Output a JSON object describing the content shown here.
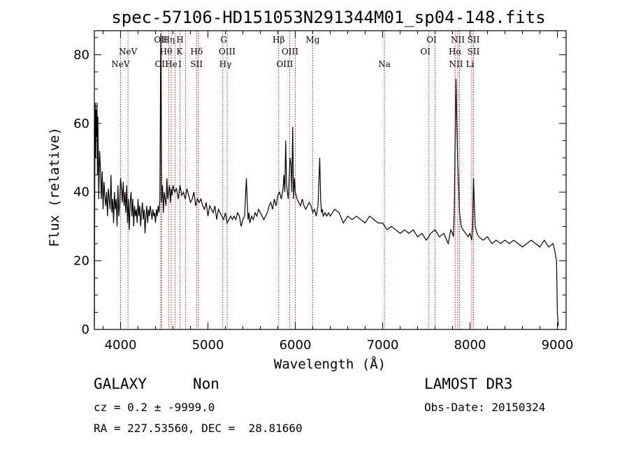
{
  "chart_data": {
    "type": "line",
    "title": "spec-57106-HD151053N291344M01_sp04-148.fits",
    "xlabel": "Wavelength (Å)",
    "ylabel": "Flux (relative)",
    "xlim": [
      3700,
      9100
    ],
    "ylim": [
      0,
      87
    ],
    "xticks": [
      4000,
      5000,
      6000,
      7000,
      8000,
      9000
    ],
    "yticks": [
      0,
      20,
      40,
      60,
      80
    ],
    "grid": false,
    "series": [
      {
        "x": [
          3700,
          3705,
          3710,
          3715,
          3720,
          3725,
          3730,
          3735,
          3740,
          3750,
          3760,
          3770,
          3780,
          3790,
          3800,
          3810,
          3820,
          3830,
          3840,
          3850,
          3860,
          3870,
          3880,
          3890,
          3900,
          3910,
          3920,
          3930,
          3940,
          3950,
          3960,
          3970,
          3980,
          3990,
          4000,
          4010,
          4020,
          4030,
          4040,
          4050,
          4060,
          4070,
          4080,
          4090,
          4100,
          4110,
          4120,
          4130,
          4140,
          4150,
          4160,
          4170,
          4180,
          4190,
          4200,
          4210,
          4220,
          4230,
          4240,
          4250,
          4260,
          4270,
          4280,
          4290,
          4300,
          4310,
          4320,
          4330,
          4340,
          4350,
          4360,
          4370,
          4380,
          4390,
          4400,
          4410,
          4420,
          4430,
          4440,
          4450,
          4460,
          4470,
          4480,
          4490,
          4500,
          4510,
          4520,
          4530,
          4540,
          4550,
          4560,
          4570,
          4580,
          4590,
          4600,
          4620,
          4640,
          4660,
          4680,
          4700,
          4720,
          4740,
          4760,
          4780,
          4800,
          4820,
          4840,
          4860,
          4880,
          4900,
          4920,
          4940,
          4960,
          4980,
          5000,
          5020,
          5040,
          5060,
          5080,
          5100,
          5120,
          5140,
          5160,
          5180,
          5200,
          5220,
          5240,
          5260,
          5280,
          5300,
          5320,
          5340,
          5360,
          5380,
          5400,
          5420,
          5440,
          5450,
          5460,
          5470,
          5480,
          5500,
          5520,
          5540,
          5560,
          5580,
          5600,
          5620,
          5640,
          5660,
          5680,
          5700,
          5720,
          5740,
          5760,
          5780,
          5800,
          5820,
          5840,
          5860,
          5870,
          5880,
          5890,
          5900,
          5920,
          5940,
          5950,
          5960,
          5970,
          5980,
          5990,
          6000,
          6020,
          6040,
          6060,
          6080,
          6100,
          6120,
          6140,
          6160,
          6180,
          6200,
          6220,
          6240,
          6260,
          6280,
          6290,
          6300,
          6310,
          6320,
          6340,
          6360,
          6380,
          6400,
          6450,
          6500,
          6550,
          6600,
          6650,
          6700,
          6750,
          6800,
          6850,
          6900,
          6950,
          7000,
          7050,
          7100,
          7150,
          7200,
          7250,
          7300,
          7350,
          7400,
          7450,
          7500,
          7550,
          7600,
          7650,
          7700,
          7750,
          7780,
          7800,
          7810,
          7820,
          7830,
          7840,
          7850,
          7860,
          7870,
          7880,
          7900,
          7920,
          7950,
          7980,
          8000,
          8010,
          8020,
          8030,
          8040,
          8050,
          8060,
          8080,
          8100,
          8150,
          8200,
          8250,
          8300,
          8350,
          8400,
          8450,
          8500,
          8550,
          8600,
          8650,
          8700,
          8750,
          8800,
          8850,
          8900,
          8950,
          8970,
          8990,
          9000,
          9010
        ],
        "y": [
          1,
          44,
          66,
          50,
          64,
          56,
          66,
          45,
          62,
          38,
          52,
          47,
          38,
          46,
          35,
          43,
          39,
          36,
          40,
          33,
          41,
          38,
          35,
          45,
          34,
          38,
          31,
          40,
          35,
          38,
          30,
          42,
          33,
          37,
          44,
          41,
          37,
          43,
          36,
          40,
          34,
          42,
          31,
          38,
          29,
          37,
          40,
          33,
          38,
          30,
          36,
          33,
          35,
          31,
          38,
          33,
          36,
          30,
          34,
          37,
          32,
          35,
          28,
          33,
          36,
          31,
          35,
          33,
          36,
          34,
          32,
          35,
          33,
          34,
          31,
          35,
          33,
          36,
          34,
          38,
          86,
          37,
          42,
          34,
          40,
          38,
          36,
          44,
          38,
          40,
          42,
          37,
          41,
          39,
          42,
          40,
          41,
          38,
          42,
          39,
          40,
          38,
          41,
          39,
          37,
          38,
          40,
          36,
          38,
          37,
          38,
          36,
          35,
          37,
          33,
          36,
          35,
          34,
          36,
          32,
          35,
          34,
          33,
          32,
          34,
          31,
          32,
          33,
          32,
          33,
          32,
          34,
          33,
          30,
          32,
          33,
          44,
          37,
          32,
          34,
          31,
          33,
          32,
          34,
          33,
          35,
          34,
          33,
          32,
          33,
          34,
          36,
          37,
          35,
          38,
          36,
          39,
          40,
          38,
          41,
          45,
          40,
          55,
          42,
          38,
          50,
          48,
          40,
          59,
          38,
          44,
          40,
          38,
          37,
          36,
          38,
          36,
          35,
          36,
          37,
          36,
          34,
          35,
          33,
          36,
          50,
          38,
          34,
          35,
          33,
          34,
          33,
          34,
          33,
          35,
          34,
          31,
          33,
          32,
          33,
          32,
          31,
          33,
          32,
          31,
          31,
          29,
          30,
          29,
          28,
          29,
          28,
          29,
          27,
          28,
          26,
          28,
          29,
          27,
          28,
          25,
          29,
          28,
          27,
          34,
          56,
          73,
          58,
          48,
          42,
          34,
          30,
          29,
          28,
          27,
          28,
          27,
          26,
          30,
          44,
          36,
          30,
          28,
          27,
          26,
          27,
          25,
          26,
          25,
          26,
          25,
          26,
          25,
          24,
          25,
          26,
          25,
          24,
          26,
          24,
          25,
          23,
          20,
          5,
          1
        ]
      }
    ],
    "emission_lines": [
      {
        "wave": 4000,
        "label": "NeV",
        "row": 3
      },
      {
        "wave": 4085,
        "label": "NeV",
        "row": 2
      },
      {
        "wave": 4460,
        "label": "OII",
        "row": 1
      },
      {
        "wave": 4470,
        "label": "OII",
        "row": 3
      },
      {
        "wave": 4550,
        "label": "Hη",
        "row": 1
      },
      {
        "wave": 4520,
        "label": "Hθ",
        "row": 2
      },
      {
        "wave": 4580,
        "label": "He",
        "row": 3
      },
      {
        "wave": 4680,
        "label": "H",
        "row": 1
      },
      {
        "wave": 4675,
        "label": "K",
        "row": 2
      },
      {
        "wave": 4680,
        "label": "I",
        "row": 3
      },
      {
        "wave": 4870,
        "label": "Hδ",
        "row": 2
      },
      {
        "wave": 4870,
        "label": "SII",
        "row": 3
      },
      {
        "wave": 5180,
        "label": "G",
        "row": 1
      },
      {
        "wave": 5220,
        "label": "OIII",
        "row": 2
      },
      {
        "wave": 5200,
        "label": "Hγ",
        "row": 3
      },
      {
        "wave": 5810,
        "label": "Hβ",
        "row": 1
      },
      {
        "wave": 5940,
        "label": "OIII",
        "row": 2
      },
      {
        "wave": 5880,
        "label": "OIII",
        "row": 3
      },
      {
        "wave": 6200,
        "label": "Mg",
        "row": 1
      },
      {
        "wave": 7020,
        "label": "Na",
        "row": 3
      },
      {
        "wave": 7560,
        "label": "OI",
        "row": 1
      },
      {
        "wave": 7490,
        "label": "OI",
        "row": 2
      },
      {
        "wave": 7860,
        "label": "NII",
        "row": 1
      },
      {
        "wave": 7830,
        "label": "Hα",
        "row": 2
      },
      {
        "wave": 7840,
        "label": "NII",
        "row": 3
      },
      {
        "wave": 8040,
        "label": "SII",
        "row": 1
      },
      {
        "wave": 8040,
        "label": "SII",
        "row": 2
      },
      {
        "wave": 8000,
        "label": "Li",
        "row": 3
      }
    ],
    "line_markers": [
      4000,
      4085,
      4460,
      4470,
      4550,
      4580,
      4625,
      4680,
      4745,
      4870,
      4890,
      5170,
      5220,
      5810,
      5935,
      6000,
      6200,
      7020,
      7530,
      7600,
      7830,
      7860,
      7880,
      8020,
      8040
    ],
    "colors": {
      "spectrum": "#000000",
      "markers": "#b00000"
    }
  },
  "info": {
    "class": "GALAXY",
    "subclass": "Non",
    "survey": "LAMOST DR3",
    "cz": "cz = 0.2 ± -9999.0",
    "obsdate": "Obs-Date: 20150324",
    "radec": "RA = 227.53560, DEC =  28.81660"
  }
}
